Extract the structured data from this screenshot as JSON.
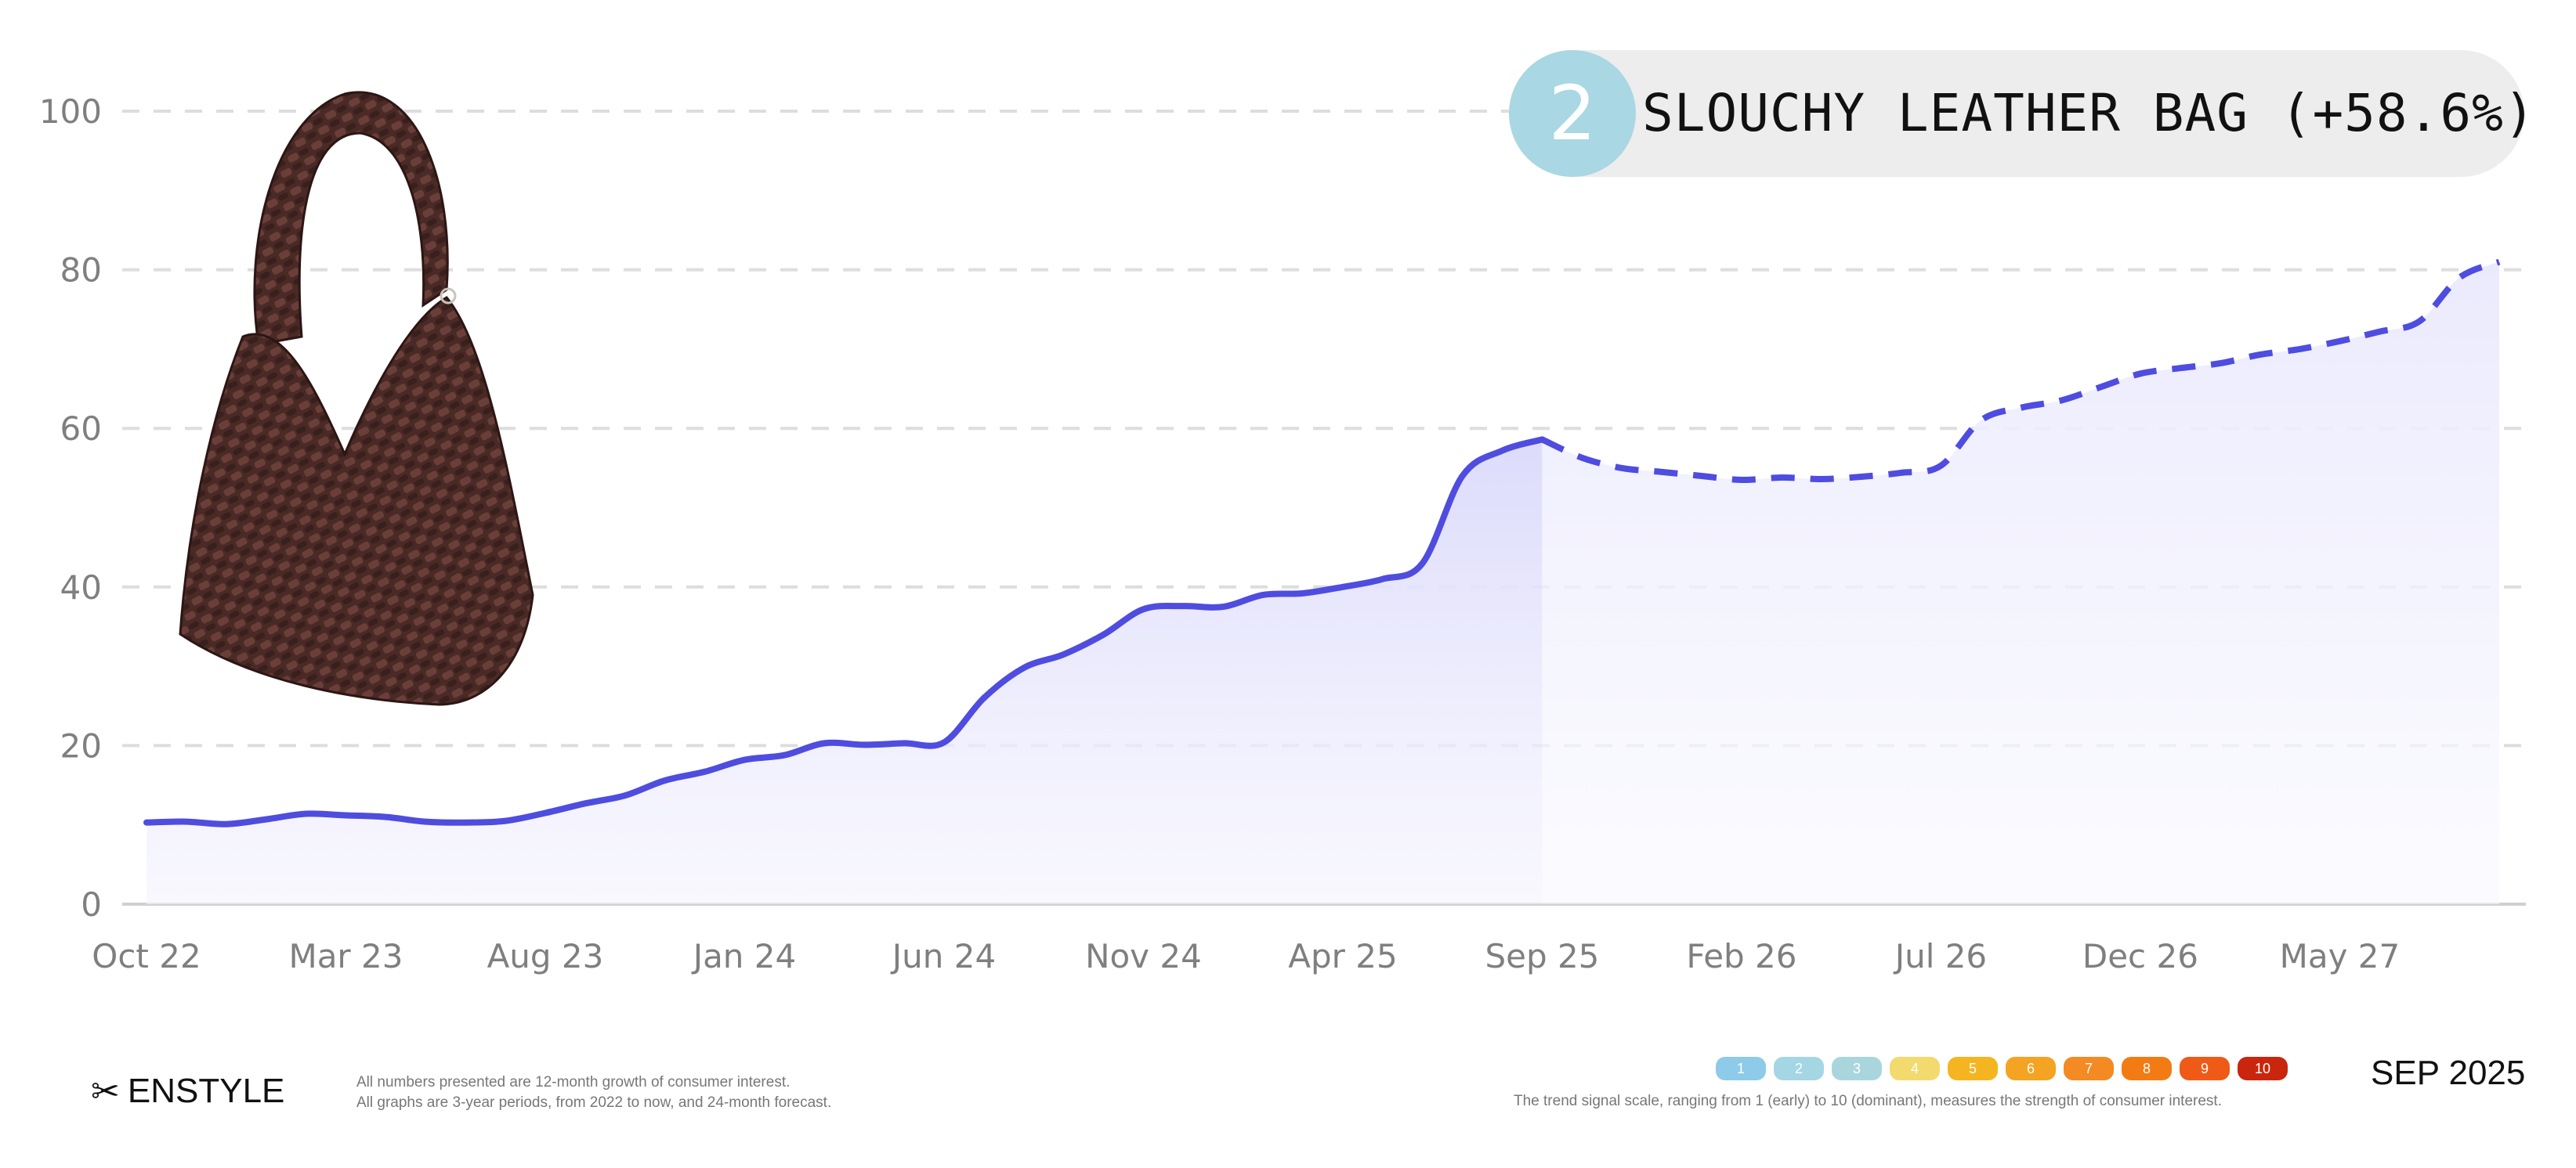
{
  "chart_data": {
    "type": "line",
    "ylim": [
      0,
      100
    ],
    "yticks": [
      0,
      20,
      40,
      60,
      80,
      100
    ],
    "x_tick_labels": [
      "Oct 22",
      "Mar 23",
      "Aug 23",
      "Jan 24",
      "Jun 24",
      "Nov 24",
      "Apr 25",
      "Sep 25",
      "Feb 26",
      "Jul 26",
      "Dec 26",
      "May 27"
    ],
    "x_tick_months": [
      0,
      5,
      10,
      15,
      20,
      25,
      30,
      35,
      40,
      45,
      50,
      55
    ],
    "grid": true,
    "series": [
      {
        "style": "solid",
        "x_months": [
          0,
          1,
          2,
          3,
          4,
          5,
          6,
          7,
          8,
          9,
          10,
          11,
          12,
          13,
          14,
          15,
          16,
          17,
          18,
          19,
          20,
          21,
          22,
          23,
          24,
          25,
          26,
          27,
          28,
          29,
          30,
          31,
          32,
          33,
          34,
          35
        ],
        "values": [
          10.3,
          10.4,
          10.1,
          10.7,
          11.4,
          11.2,
          11.0,
          10.4,
          10.3,
          10.5,
          11.5,
          12.7,
          13.7,
          15.6,
          16.7,
          18.2,
          18.8,
          20.3,
          20.1,
          20.3,
          20.4,
          26.0,
          29.8,
          31.5,
          34.0,
          37.2,
          37.6,
          37.5,
          39.0,
          39.2,
          40.0,
          41.0,
          43.0,
          54.0,
          57.2,
          58.6
        ]
      },
      {
        "style": "dashed",
        "x_months": [
          35,
          36,
          37,
          38,
          39,
          40,
          41,
          42,
          43,
          44,
          45,
          46,
          47,
          48,
          49,
          50,
          51,
          52,
          53,
          54,
          55,
          56,
          57,
          58,
          59
        ],
        "values": [
          58.6,
          56.3,
          55.0,
          54.5,
          54.0,
          53.5,
          53.8,
          53.6,
          53.9,
          54.4,
          55.3,
          61.0,
          62.6,
          63.5,
          65.2,
          66.9,
          67.6,
          68.2,
          69.3,
          70.0,
          71.0,
          72.2,
          73.5,
          79.0,
          81.0
        ]
      }
    ],
    "colors": {
      "line": "#4f4ce0",
      "fill": "#eeedfd",
      "grid": "#dddddd",
      "axis": "#d0d0d0"
    }
  },
  "badge": {
    "rank": "2",
    "title": "SLOUCHY LEATHER BAG (+58.6%)",
    "circle_color": "#a9d7e3",
    "pill_color": "#ededed"
  },
  "footer": {
    "brand": "ENSTYLE",
    "brand_icon": "scissors-icon",
    "note_line1": "All numbers presented are 12-month growth of consumer interest.",
    "note_line2": "All graphs are 3-year periods, from 2022 to now, and 24-month forecast.",
    "scale_labels": [
      "1",
      "2",
      "3",
      "4",
      "5",
      "6",
      "7",
      "8",
      "9",
      "10"
    ],
    "scale_colors": [
      "#8dcbe8",
      "#a5d6e4",
      "#a9d6dd",
      "#f3da6e",
      "#f5b521",
      "#f5a323",
      "#f38a22",
      "#f27b14",
      "#ef5a17",
      "#c9260d"
    ],
    "scale_caption": "The trend signal scale, ranging from 1 (early) to 10 (dominant), measures the strength of consumer interest.",
    "date": "SEP 2025"
  }
}
